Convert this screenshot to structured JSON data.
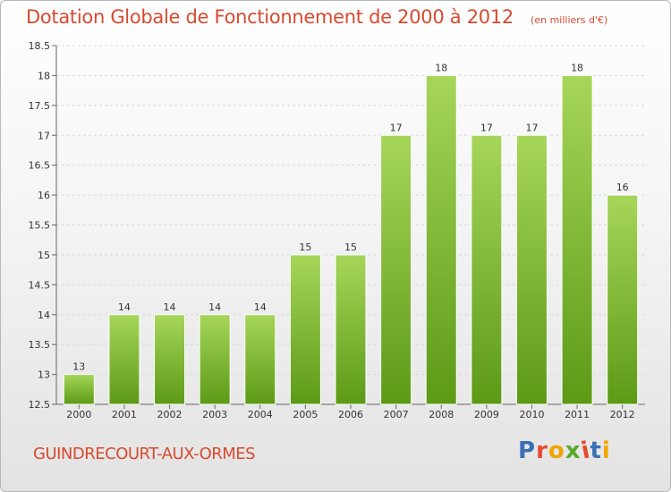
{
  "header": {
    "title": "Dotation Globale de Fonctionnement de 2000 à 2012",
    "subtitle": "(en milliers d'€)"
  },
  "footer": {
    "commune": "GUINDRECOURT-AUX-ORMES",
    "logo": "Proxiti",
    "logo_colors": [
      "#3a6fb5",
      "#e94a2c",
      "#f0a500",
      "#5aaa2a",
      "#e94a2c",
      "#3a6fb5",
      "#f0a500"
    ]
  },
  "colors": {
    "bar_top": "#a6d65a",
    "bar_bottom": "#5c9a16",
    "grid": "#d9d9d9",
    "text": "#333333",
    "accent": "#d84a2e"
  },
  "chart_data": {
    "type": "bar",
    "title": "Dotation Globale de Fonctionnement de 2000 à 2012",
    "subtitle": "(en milliers d'€)",
    "categories": [
      "2000",
      "2001",
      "2002",
      "2003",
      "2004",
      "2005",
      "2006",
      "2007",
      "2008",
      "2009",
      "2010",
      "2011",
      "2012"
    ],
    "values": [
      13,
      14,
      14,
      14,
      14,
      15,
      15,
      17,
      18,
      17,
      17,
      18,
      16
    ],
    "data_labels": [
      "13",
      "14",
      "14",
      "14",
      "14",
      "15",
      "15",
      "17",
      "18",
      "17",
      "17",
      "18",
      "16"
    ],
    "ylim": [
      12.5,
      18.5
    ],
    "yticks": [
      12.5,
      13,
      13.5,
      14,
      14.5,
      15,
      15.5,
      16,
      16.5,
      17,
      17.5,
      18,
      18.5
    ],
    "ytick_labels": [
      "12.5",
      "13",
      "13.5",
      "14",
      "14.5",
      "15",
      "15.5",
      "16",
      "16.5",
      "17",
      "17.5",
      "18",
      "18.5"
    ],
    "grid": true,
    "legend": "none",
    "xlabel": "",
    "ylabel": ""
  }
}
